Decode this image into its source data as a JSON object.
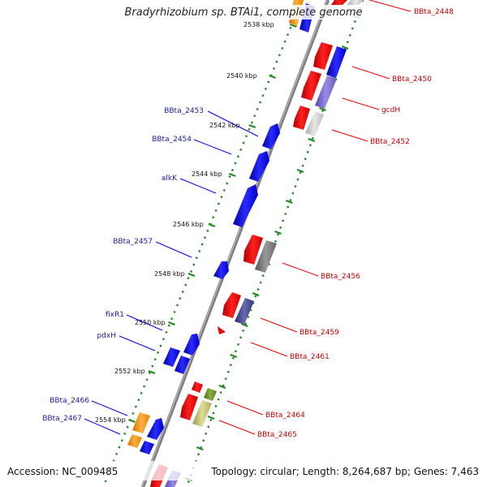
{
  "title": "Bradyrhizobium sp. BTAi1, complete genome",
  "footer": {
    "accession": "Accession: NC_009485",
    "topology": "Topology: circular; Length: 8,264,687 bp; Genes: 7,463"
  },
  "ticks": [
    {
      "label": "2538 kbp"
    },
    {
      "label": "2540 kbp"
    },
    {
      "label": "2542 kbp"
    },
    {
      "label": "2544 kbp"
    },
    {
      "label": "2546 kbp"
    },
    {
      "label": "2548 kbp"
    },
    {
      "label": "2550 kbp"
    },
    {
      "label": "2552 kbp"
    },
    {
      "label": "2554 kbp"
    }
  ],
  "left_genes": [
    {
      "label": "BBta_2453",
      "color": "#1a1aa8"
    },
    {
      "label": "BBta_2454",
      "color": "#1a1aa8"
    },
    {
      "label": "alkK",
      "color": "#1a1aa8"
    },
    {
      "label": "BBta_2457",
      "color": "#1a1aa8"
    },
    {
      "label": "fixR1",
      "color": "#1a1aa8"
    },
    {
      "label": "pdxH",
      "color": "#1a1aa8"
    },
    {
      "label": "BBta_2466",
      "color": "#1a1aa8"
    },
    {
      "label": "BBta_2467",
      "color": "#1a1aa8"
    }
  ],
  "right_genes": [
    {
      "label": "BBta_2448",
      "color": "#cc0000"
    },
    {
      "label": "BBta_2450",
      "color": "#cc0000"
    },
    {
      "label": "gcdH",
      "color": "#cc0000"
    },
    {
      "label": "BBta_2452",
      "color": "#cc0000"
    },
    {
      "label": "BBta_2456",
      "color": "#cc0000"
    },
    {
      "label": "BBta_2459",
      "color": "#cc0000"
    },
    {
      "label": "BBta_2461",
      "color": "#cc0000"
    },
    {
      "label": "BBta_2464",
      "color": "#cc0000"
    },
    {
      "label": "BBta_2465",
      "color": "#cc0000"
    }
  ],
  "colors": {
    "backbone": "#808080",
    "ring_dots": "#228b22",
    "forward_cds": "#0000ee",
    "reverse_cds": "#ee0000"
  }
}
